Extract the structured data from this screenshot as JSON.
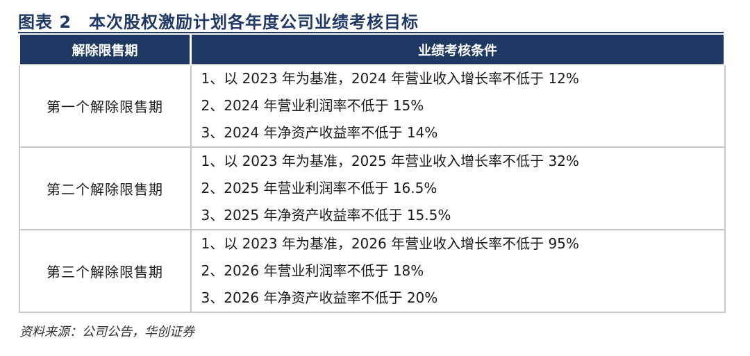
{
  "title": "图表 2　本次股权激励计划各年度公司业绩考核目标",
  "table": {
    "headers": [
      "解除限售期",
      "业绩考核条件"
    ],
    "rows": [
      {
        "period": "第一个解除限售期",
        "conditions": [
          "1、以 2023 年为基准，2024 年营业收入增长率不低于 12%",
          "2、2024 年营业利润率不低于 15%",
          "3、2024 年净资产收益率不低于 14%"
        ]
      },
      {
        "period": "第二个解除限售期",
        "conditions": [
          "1、以 2023 年为基准，2025 年营业收入增长率不低于 32%",
          "2、2025 年营业利润率不低于 16.5%",
          "3、2025 年净资产收益率不低于 15.5%"
        ]
      },
      {
        "period": "第三个解除限售期",
        "conditions": [
          "1、以 2023 年为基准，2026 年营业收入增长率不低于 95%",
          "2、2026 年营业利润率不低于 18%",
          "3、2026 年净资产收益率不低于 20%"
        ]
      }
    ]
  },
  "source": "资料来源：公司公告，华创证券",
  "colors": {
    "header_bg": "#1f3864",
    "border": "#c8c8c8"
  }
}
